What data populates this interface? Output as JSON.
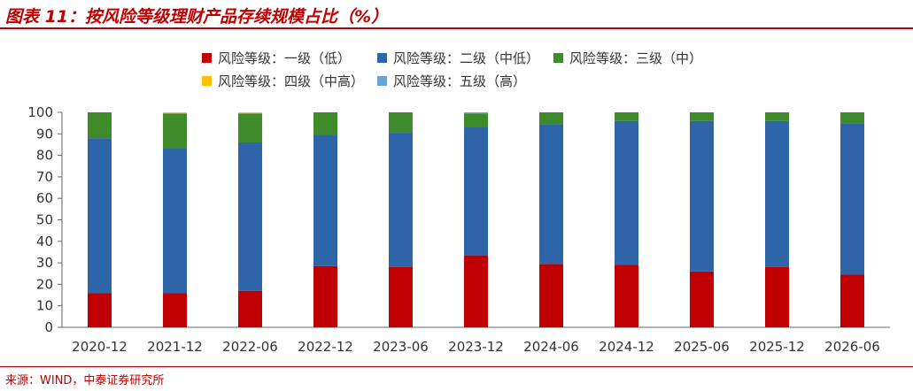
{
  "header": {
    "title": "图表 11：按风险等级理财产品存续规模占比（%）"
  },
  "footer": {
    "source": "来源：WIND，中泰证券研究所"
  },
  "chart_data": {
    "type": "bar",
    "stacked": true,
    "categories": [
      "2020-12",
      "2021-12",
      "2022-06",
      "2022-12",
      "2023-06",
      "2023-12",
      "2024-06",
      "2024-12",
      "2025-06",
      "2025-12",
      "2026-06"
    ],
    "series": [
      {
        "name": "风险等级：一级（低）",
        "color": "#c00000",
        "values": [
          16,
          16,
          17,
          28.5,
          28,
          33.5,
          29.5,
          29,
          26,
          28,
          24.5
        ]
      },
      {
        "name": "风险等级：二级（中低）",
        "color": "#2e64a8",
        "values": [
          72,
          67.5,
          69,
          61,
          62.5,
          59.5,
          65,
          67,
          70,
          68,
          70.5
        ]
      },
      {
        "name": "风险等级：三级（中）",
        "color": "#3f8a2a",
        "values": [
          12,
          16,
          13.5,
          10.5,
          9.5,
          6.5,
          5.5,
          4,
          4,
          4,
          5
        ]
      },
      {
        "name": "风险等级：四级（中高）",
        "color": "#ffc000",
        "values": [
          0,
          0.5,
          0.5,
          0,
          0,
          0,
          0,
          0,
          0,
          0,
          0
        ]
      },
      {
        "name": "风险等级：五级（高）",
        "color": "#6aa3d8",
        "values": [
          0,
          0,
          0,
          0,
          0,
          0.5,
          0,
          0,
          0,
          0,
          0
        ]
      }
    ],
    "ylim": [
      0,
      100
    ],
    "yticks": [
      0,
      10,
      20,
      30,
      40,
      50,
      60,
      70,
      80,
      90,
      100
    ],
    "grid": false,
    "legend_position": "top",
    "xlabel": "",
    "ylabel": ""
  }
}
